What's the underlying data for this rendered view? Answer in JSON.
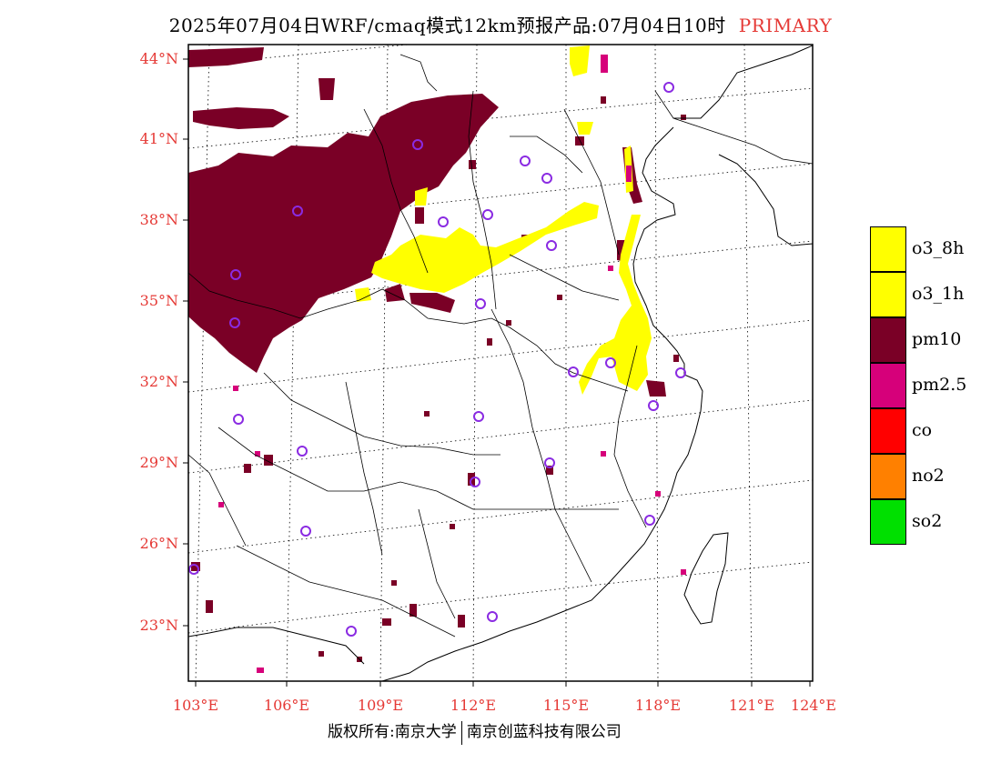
{
  "title": {
    "main": "2025年07月04日WRF/cmaq模式12km预报产品:07月04日10时",
    "tag": "PRIMARY"
  },
  "colors": {
    "o3_8h": "#ffff00",
    "o3_1h": "#ffff00",
    "pm10": "#7a0026",
    "pm2_5": "#d6007a",
    "co": "#ff0000",
    "no2": "#ff8000",
    "so2": "#00e000",
    "station": "#8a2be2",
    "axis_label": "#e53935"
  },
  "lat_labels": [
    "44°N",
    "41°N",
    "38°N",
    "35°N",
    "32°N",
    "29°N",
    "26°N",
    "23°N"
  ],
  "lon_labels": [
    "103°E",
    "106°E",
    "109°E",
    "112°E",
    "115°E",
    "118°E",
    "121°E",
    "124°E"
  ],
  "legend": [
    {
      "label": "o3_8h",
      "color": "#ffff00"
    },
    {
      "label": "o3_1h",
      "color": "#ffff00"
    },
    {
      "label": "pm10",
      "color": "#7a0026"
    },
    {
      "label": "pm2.5",
      "color": "#d6007a"
    },
    {
      "label": "co",
      "color": "#ff0000"
    },
    {
      "label": "no2",
      "color": "#ff8000"
    },
    {
      "label": "so2",
      "color": "#00e000"
    }
  ],
  "footer": {
    "left": "版权所有:南京大学",
    "right": "南京创蓝科技有限公司"
  }
}
